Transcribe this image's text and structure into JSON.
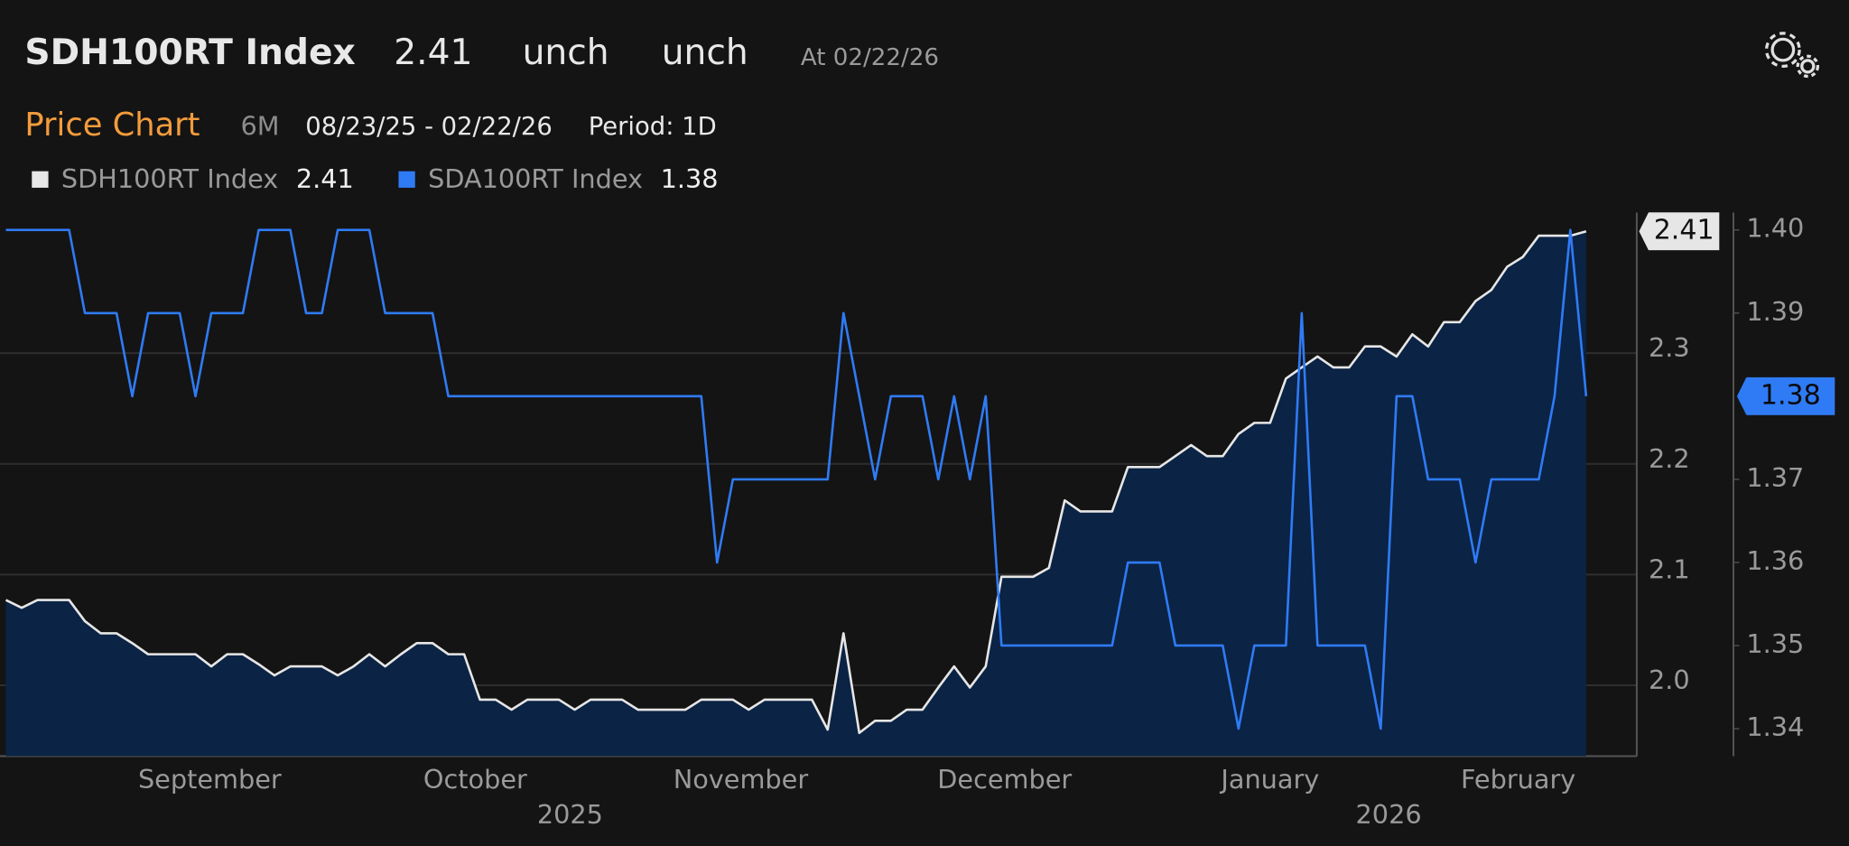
{
  "header": {
    "title": "SDH100RT Index",
    "price": "2.41",
    "change": "unch",
    "change_pct": "unch",
    "as_of": "At 02/22/26"
  },
  "subheader": {
    "label": "Price Chart",
    "range": "6M",
    "dates": "08/23/25 - 02/22/26",
    "period": "Period: 1D"
  },
  "chart_data": {
    "type": "line",
    "x": [
      0,
      1,
      2,
      3,
      4,
      5,
      6,
      7,
      8,
      9,
      10,
      11,
      12,
      13,
      14,
      15,
      16,
      17,
      18,
      19,
      20,
      21,
      22,
      23,
      24,
      25,
      26,
      27,
      28,
      29,
      30,
      31,
      32,
      33,
      34,
      35,
      36,
      37,
      38,
      39,
      40,
      41,
      42,
      43,
      44,
      45,
      46,
      47,
      48,
      49,
      50,
      51,
      52,
      53,
      54,
      55,
      56,
      57,
      58,
      59,
      60,
      61,
      62,
      63,
      64,
      65,
      66,
      67,
      68,
      69,
      70,
      71,
      72,
      73,
      74,
      75,
      76,
      77,
      78,
      79,
      80,
      81,
      82,
      83,
      84,
      85,
      86,
      87,
      88,
      89,
      90,
      91,
      92,
      93,
      94,
      95,
      96,
      97,
      98,
      99,
      100
    ],
    "xlim": [
      0,
      103.2
    ],
    "xticks": [
      {
        "value": 12.9,
        "label": "September"
      },
      {
        "value": 29.7,
        "label": "October"
      },
      {
        "value": 46.5,
        "label": "November"
      },
      {
        "value": 63.2,
        "label": "December"
      },
      {
        "value": 80,
        "label": "January"
      },
      {
        "value": 95.7,
        "label": "February"
      }
    ],
    "year_ticks": [
      {
        "value": 35.7,
        "label": "2025"
      },
      {
        "value": 87.5,
        "label": "2026"
      }
    ],
    "ylim": [
      1.936,
      2.427
    ],
    "yticks": [
      {
        "value": 2,
        "label": "2.0"
      },
      2.1,
      2.2,
      2.3
    ],
    "y2lim": [
      1.3367,
      1.4021
    ],
    "y2ticks": [
      1.34,
      1.35,
      1.36,
      1.37,
      1.39,
      {
        "value": 1.4,
        "label": "1.40"
      }
    ],
    "grid": true,
    "series": [
      {
        "name": "SDH100RT Index",
        "color": "#e6e6e6",
        "area_color": "#0b2344",
        "axis": "y",
        "values": [
          2.077,
          2.07,
          2.077,
          2.077,
          2.077,
          2.058,
          2.047,
          2.047,
          2.038,
          2.028,
          2.028,
          2.028,
          2.028,
          2.017,
          2.028,
          2.028,
          2.019,
          2.009,
          2.017,
          2.017,
          2.017,
          2.009,
          2.017,
          2.028,
          2.017,
          2.028,
          2.038,
          2.038,
          2.028,
          2.028,
          1.987,
          1.987,
          1.978,
          1.987,
          1.987,
          1.987,
          1.978,
          1.987,
          1.987,
          1.987,
          1.978,
          1.978,
          1.978,
          1.978,
          1.987,
          1.987,
          1.987,
          1.978,
          1.987,
          1.987,
          1.987,
          1.987,
          1.96,
          2.047,
          1.957,
          1.968,
          1.968,
          1.978,
          1.978,
          1.998,
          2.017,
          1.998,
          2.017,
          2.098,
          2.098,
          2.098,
          2.106,
          2.167,
          2.157,
          2.157,
          2.157,
          2.197,
          2.197,
          2.197,
          2.207,
          2.217,
          2.207,
          2.207,
          2.227,
          2.237,
          2.237,
          2.277,
          2.287,
          2.297,
          2.287,
          2.287,
          2.306,
          2.306,
          2.297,
          2.317,
          2.306,
          2.328,
          2.328,
          2.347,
          2.357,
          2.378,
          2.387,
          2.406,
          2.406,
          2.406,
          2.41
        ]
      },
      {
        "name": "SDA100RT Index",
        "color": "#2f7bf5",
        "axis": "y2",
        "values": [
          1.4,
          1.4,
          1.4,
          1.4,
          1.4,
          1.39,
          1.39,
          1.39,
          1.38,
          1.39,
          1.39,
          1.39,
          1.38,
          1.39,
          1.39,
          1.39,
          1.4,
          1.4,
          1.4,
          1.39,
          1.39,
          1.4,
          1.4,
          1.4,
          1.39,
          1.39,
          1.39,
          1.39,
          1.38,
          1.38,
          1.38,
          1.38,
          1.38,
          1.38,
          1.38,
          1.38,
          1.38,
          1.38,
          1.38,
          1.38,
          1.38,
          1.38,
          1.38,
          1.38,
          1.38,
          1.36,
          1.37,
          1.37,
          1.37,
          1.37,
          1.37,
          1.37,
          1.37,
          1.39,
          1.38,
          1.37,
          1.38,
          1.38,
          1.38,
          1.37,
          1.38,
          1.37,
          1.38,
          1.35,
          1.35,
          1.35,
          1.35,
          1.35,
          1.35,
          1.35,
          1.35,
          1.36,
          1.36,
          1.36,
          1.35,
          1.35,
          1.35,
          1.35,
          1.34,
          1.35,
          1.35,
          1.35,
          1.39,
          1.35,
          1.35,
          1.35,
          1.35,
          1.34,
          1.38,
          1.38,
          1.37,
          1.37,
          1.37,
          1.36,
          1.37,
          1.37,
          1.37,
          1.37,
          1.38,
          1.4,
          1.38
        ]
      }
    ]
  }
}
